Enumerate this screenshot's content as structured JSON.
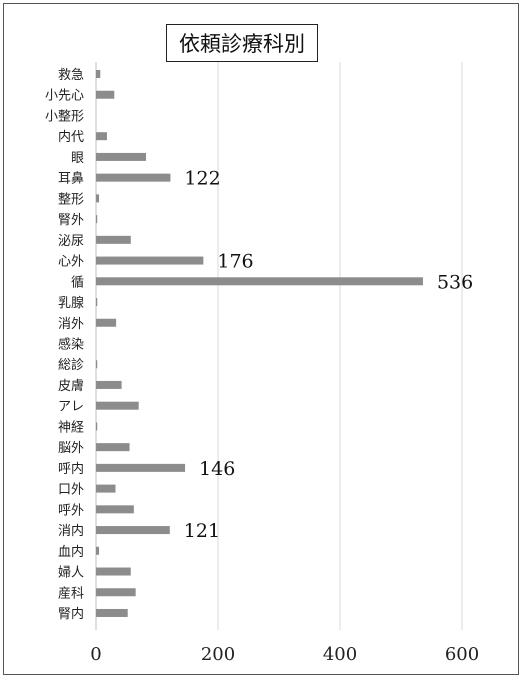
{
  "chart_data": {
    "type": "bar",
    "orientation": "horizontal",
    "title": "依頼診療科別",
    "categories": [
      "救急",
      "小先心",
      "小整形",
      "内代",
      "眼",
      "耳鼻",
      "整形",
      "腎外",
      "泌尿",
      "心外",
      "循",
      "乳腺",
      "消外",
      "感染",
      "総診",
      "皮膚",
      "アレ",
      "神経",
      "脳外",
      "呼内",
      "口外",
      "呼外",
      "消内",
      "血内",
      "婦人",
      "産科",
      "腎内"
    ],
    "values": [
      7,
      30,
      0,
      18,
      82,
      122,
      5,
      2,
      57,
      176,
      536,
      2,
      33,
      0,
      2,
      42,
      70,
      2,
      55,
      146,
      32,
      62,
      121,
      5,
      57,
      65,
      52
    ],
    "data_labels": [
      {
        "category": "耳鼻",
        "text": "122"
      },
      {
        "category": "心外",
        "text": "176"
      },
      {
        "category": "循",
        "text": "536"
      },
      {
        "category": "呼内",
        "text": "146"
      },
      {
        "category": "消内",
        "text": "121"
      }
    ],
    "xlim": [
      0,
      600
    ],
    "xticks": [
      0,
      200,
      400,
      600
    ],
    "xtick_labels": [
      "0",
      "200",
      "400",
      "600"
    ],
    "grid": "vertical",
    "bar_color": "#8c8c8c",
    "grid_color": "#d9d9d9",
    "legend": "none"
  }
}
